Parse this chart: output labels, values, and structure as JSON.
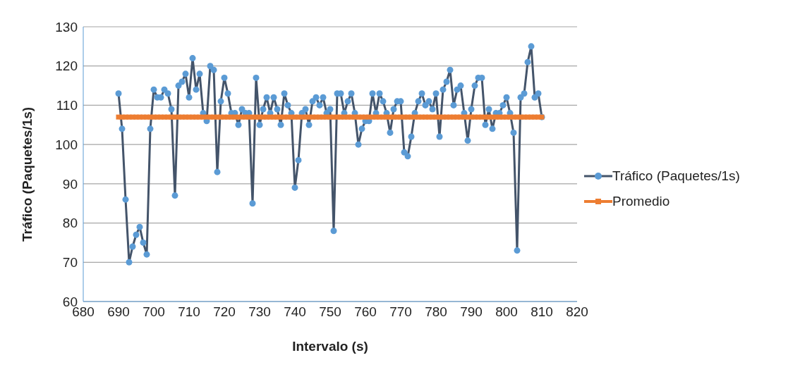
{
  "chart_data": {
    "type": "line",
    "xlabel": "Intervalo (s)",
    "ylabel": "Tráfico (Paquetes/1s)",
    "x": [
      690,
      691,
      692,
      693,
      694,
      695,
      696,
      697,
      698,
      699,
      700,
      701,
      702,
      703,
      704,
      705,
      706,
      707,
      708,
      709,
      710,
      711,
      712,
      713,
      714,
      715,
      716,
      717,
      718,
      719,
      720,
      721,
      722,
      723,
      724,
      725,
      726,
      727,
      728,
      729,
      730,
      731,
      732,
      733,
      734,
      735,
      736,
      737,
      738,
      739,
      740,
      741,
      742,
      743,
      744,
      745,
      746,
      747,
      748,
      749,
      750,
      751,
      752,
      753,
      754,
      755,
      756,
      757,
      758,
      759,
      760,
      761,
      762,
      763,
      764,
      765,
      766,
      767,
      768,
      769,
      770,
      771,
      772,
      773,
      774,
      775,
      776,
      777,
      778,
      779,
      780,
      781,
      782,
      783,
      784,
      785,
      786,
      787,
      788,
      789,
      790,
      791,
      792,
      793,
      794,
      795,
      796,
      797,
      798,
      799,
      800,
      801,
      802,
      803,
      804,
      805,
      806,
      807,
      808,
      809,
      810
    ],
    "series": [
      {
        "name": "Tráfico (Paquetes/1s)",
        "color": "#44546a",
        "marker": "circle",
        "values": [
          113,
          104,
          86,
          70,
          74,
          77,
          79,
          75,
          72,
          104,
          114,
          112,
          112,
          114,
          113,
          109,
          87,
          115,
          116,
          118,
          112,
          122,
          114,
          118,
          108,
          106,
          120,
          119,
          93,
          111,
          117,
          113,
          108,
          108,
          105,
          109,
          108,
          108,
          85,
          117,
          105,
          109,
          112,
          108,
          112,
          109,
          105,
          113,
          110,
          108,
          89,
          96,
          108,
          109,
          105,
          111,
          112,
          110,
          112,
          108,
          109,
          78,
          113,
          113,
          108,
          111,
          113,
          108,
          100,
          104,
          106,
          106,
          113,
          108,
          113,
          111,
          108,
          103,
          109,
          111,
          111,
          98,
          97,
          102,
          108,
          111,
          113,
          110,
          111,
          109,
          113,
          102,
          114,
          116,
          119,
          110,
          114,
          115,
          108,
          101,
          109,
          115,
          117,
          117,
          105,
          109,
          104,
          108,
          108,
          110,
          112,
          108,
          103,
          73,
          112,
          113,
          121,
          125,
          112,
          113,
          107
        ]
      },
      {
        "name": "Promedio",
        "color": "#ed7d31",
        "marker": "square",
        "values": [
          107,
          107,
          107,
          107,
          107,
          107,
          107,
          107,
          107,
          107,
          107,
          107,
          107,
          107,
          107,
          107,
          107,
          107,
          107,
          107,
          107,
          107,
          107,
          107,
          107,
          107,
          107,
          107,
          107,
          107,
          107,
          107,
          107,
          107,
          107,
          107,
          107,
          107,
          107,
          107,
          107,
          107,
          107,
          107,
          107,
          107,
          107,
          107,
          107,
          107,
          107,
          107,
          107,
          107,
          107,
          107,
          107,
          107,
          107,
          107,
          107,
          107,
          107,
          107,
          107,
          107,
          107,
          107,
          107,
          107,
          107,
          107,
          107,
          107,
          107,
          107,
          107,
          107,
          107,
          107,
          107,
          107,
          107,
          107,
          107,
          107,
          107,
          107,
          107,
          107,
          107,
          107,
          107,
          107,
          107,
          107,
          107,
          107,
          107,
          107,
          107,
          107,
          107,
          107,
          107,
          107,
          107,
          107,
          107,
          107,
          107,
          107,
          107,
          107,
          107,
          107,
          107,
          107,
          107,
          107,
          107
        ]
      }
    ],
    "xlim": [
      680,
      820
    ],
    "xticks": [
      680,
      690,
      700,
      710,
      720,
      730,
      740,
      750,
      760,
      770,
      780,
      790,
      800,
      810,
      820
    ],
    "ylim": [
      60,
      130
    ],
    "yticks": [
      60,
      70,
      80,
      90,
      100,
      110,
      120,
      130
    ],
    "grid": "y",
    "legend": "right"
  }
}
